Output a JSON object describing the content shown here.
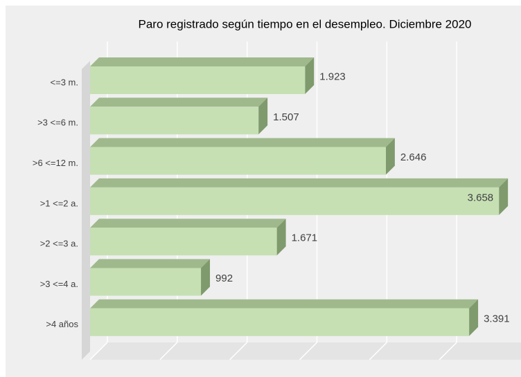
{
  "chart_data": {
    "type": "bar",
    "orientation": "horizontal",
    "title": "Paro registrado según tiempo en el desempleo. Diciembre 2020",
    "categories": [
      "<=3 m.",
      ">3 <=6 m.",
      ">6 <=12 m.",
      ">1 <=2 a.",
      ">2 <=3 a.",
      ">3 <=4 a.",
      ">4 años"
    ],
    "values": [
      1923,
      1507,
      2646,
      3658,
      1671,
      992,
      3391
    ],
    "value_labels": [
      "1.923",
      "1.507",
      "2.646",
      "3.658",
      "1.671",
      "992",
      "3.391"
    ],
    "color": "#c6e0b4",
    "xlim": [
      0,
      3750
    ],
    "xticks": [
      0,
      625,
      1250,
      1875,
      2500,
      3125
    ],
    "grid": true
  }
}
